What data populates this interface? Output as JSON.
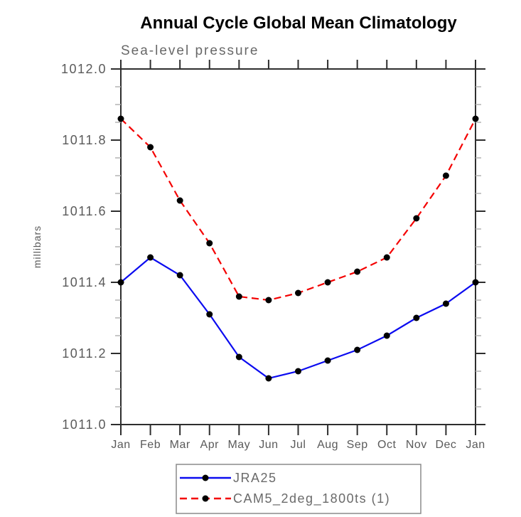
{
  "chart_data": {
    "type": "line",
    "title": "Annual Cycle Global Mean Climatology",
    "subtitle": "Sea-level pressure",
    "ylabel": "millibars",
    "xlabel": "",
    "categories": [
      "Jan",
      "Feb",
      "Mar",
      "Apr",
      "May",
      "Jun",
      "Jul",
      "Aug",
      "Sep",
      "Oct",
      "Nov",
      "Dec",
      "Jan"
    ],
    "series": [
      {
        "name": "JRA25",
        "color": "#0b0bf0",
        "line_style": "solid",
        "marker": "filled-black-circle",
        "values": [
          1011.4,
          1011.47,
          1011.42,
          1011.31,
          1011.19,
          1011.13,
          1011.15,
          1011.18,
          1011.21,
          1011.25,
          1011.3,
          1011.34,
          1011.4
        ]
      },
      {
        "name": "CAM5_2deg_1800ts (1)",
        "color": "#f40000",
        "line_style": "dashed",
        "marker": "filled-black-circle",
        "values": [
          1011.86,
          1011.78,
          1011.63,
          1011.51,
          1011.36,
          1011.35,
          1011.37,
          1011.4,
          1011.43,
          1011.47,
          1011.58,
          1011.7,
          1011.86
        ]
      }
    ],
    "ylim": [
      1011.0,
      1012.0
    ],
    "yticks": [
      1011.0,
      1011.2,
      1011.4,
      1011.6,
      1011.8,
      1012.0
    ],
    "ytick_labels": [
      "1011.0",
      "1011.2",
      "1011.4",
      "1011.6",
      "1011.8",
      "1012.0"
    ],
    "y_minor_tick_interval": 0.05,
    "grid": false,
    "legend_position": "bottom-center",
    "marker_color": "#000000",
    "axis_color": "#2e2e2e",
    "minor_tick_color": "#b2b2b2"
  }
}
